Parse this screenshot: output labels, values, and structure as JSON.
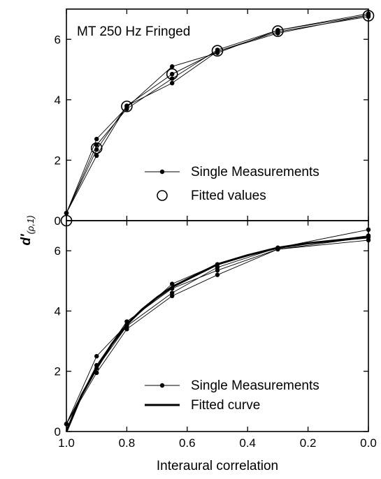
{
  "chart_data": [
    {
      "type": "line",
      "title": "MT 250 Hz Fringed",
      "x_axis_label": "Interaural correlation",
      "y_axis_label": "d'",
      "y_axis_label_subscript": "(ρ,1)",
      "xlim": [
        1.0,
        0.0
      ],
      "ylim": [
        0,
        7
      ],
      "xticks": [
        1.0,
        0.8,
        0.6,
        0.4,
        0.2,
        0.0
      ],
      "xtick_labels": [
        "1.0",
        "0.8",
        "0.6",
        "0.4",
        "0.2",
        "0.0"
      ],
      "yticks": [
        0,
        2,
        4,
        6
      ],
      "ytick_labels": [
        "0",
        "2",
        "4",
        "6"
      ],
      "x": [
        1.0,
        0.9,
        0.8,
        0.65,
        0.5,
        0.3,
        0.0
      ],
      "series": [
        {
          "values": [
            0.25,
            2.35,
            3.8,
            4.85,
            5.6,
            6.25,
            6.75
          ]
        },
        {
          "values": [
            0.25,
            2.7,
            3.75,
            5.1,
            5.55,
            6.3,
            6.8
          ]
        },
        {
          "values": [
            0.25,
            2.15,
            3.8,
            4.55,
            5.6,
            6.2,
            6.8
          ]
        },
        {
          "values": [
            0.25,
            2.5,
            3.7,
            4.7,
            5.65,
            6.3,
            6.85
          ]
        }
      ],
      "fitted_values": {
        "x": [
          1.0,
          0.9,
          0.8,
          0.65,
          0.5,
          0.3,
          0.0
        ],
        "values": [
          0.0,
          2.4,
          3.78,
          4.85,
          5.62,
          6.27,
          6.78
        ]
      },
      "legend": {
        "position": "bottom-right",
        "items": [
          "Single Measurements",
          "Fitted values"
        ]
      }
    },
    {
      "type": "line",
      "x_axis_label": "Interaural correlation",
      "xlim": [
        1.0,
        0.0
      ],
      "ylim": [
        0,
        7
      ],
      "xticks": [
        1.0,
        0.8,
        0.6,
        0.4,
        0.2,
        0.0
      ],
      "xtick_labels": [
        "1.0",
        "0.8",
        "0.6",
        "0.4",
        "0.2",
        "0.0"
      ],
      "yticks": [
        0,
        2,
        4,
        6
      ],
      "ytick_labels": [
        "0",
        "2",
        "4",
        "6"
      ],
      "x": [
        1.0,
        0.9,
        0.8,
        0.65,
        0.5,
        0.3,
        0.0
      ],
      "series": [
        {
          "values": [
            0.25,
            2.5,
            3.55,
            4.9,
            5.55,
            6.1,
            6.5
          ]
        },
        {
          "values": [
            0.25,
            2.2,
            3.65,
            4.75,
            5.35,
            6.05,
            6.45
          ]
        },
        {
          "values": [
            0.25,
            2.1,
            3.5,
            4.6,
            5.45,
            6.1,
            6.7
          ]
        },
        {
          "values": [
            0.25,
            1.95,
            3.4,
            4.5,
            5.2,
            6.05,
            6.35
          ]
        }
      ],
      "fitted_curve": {
        "x": [
          1.0,
          0.95,
          0.9,
          0.85,
          0.8,
          0.75,
          0.7,
          0.65,
          0.6,
          0.5,
          0.4,
          0.3,
          0.2,
          0.1,
          0.0
        ],
        "values": [
          0.0,
          1.2,
          2.1,
          2.9,
          3.55,
          4.05,
          4.45,
          4.8,
          5.05,
          5.55,
          5.85,
          6.1,
          6.25,
          6.35,
          6.45
        ]
      },
      "legend": {
        "position": "bottom-right",
        "items": [
          "Single Measurements",
          "Fitted curve"
        ]
      }
    }
  ]
}
